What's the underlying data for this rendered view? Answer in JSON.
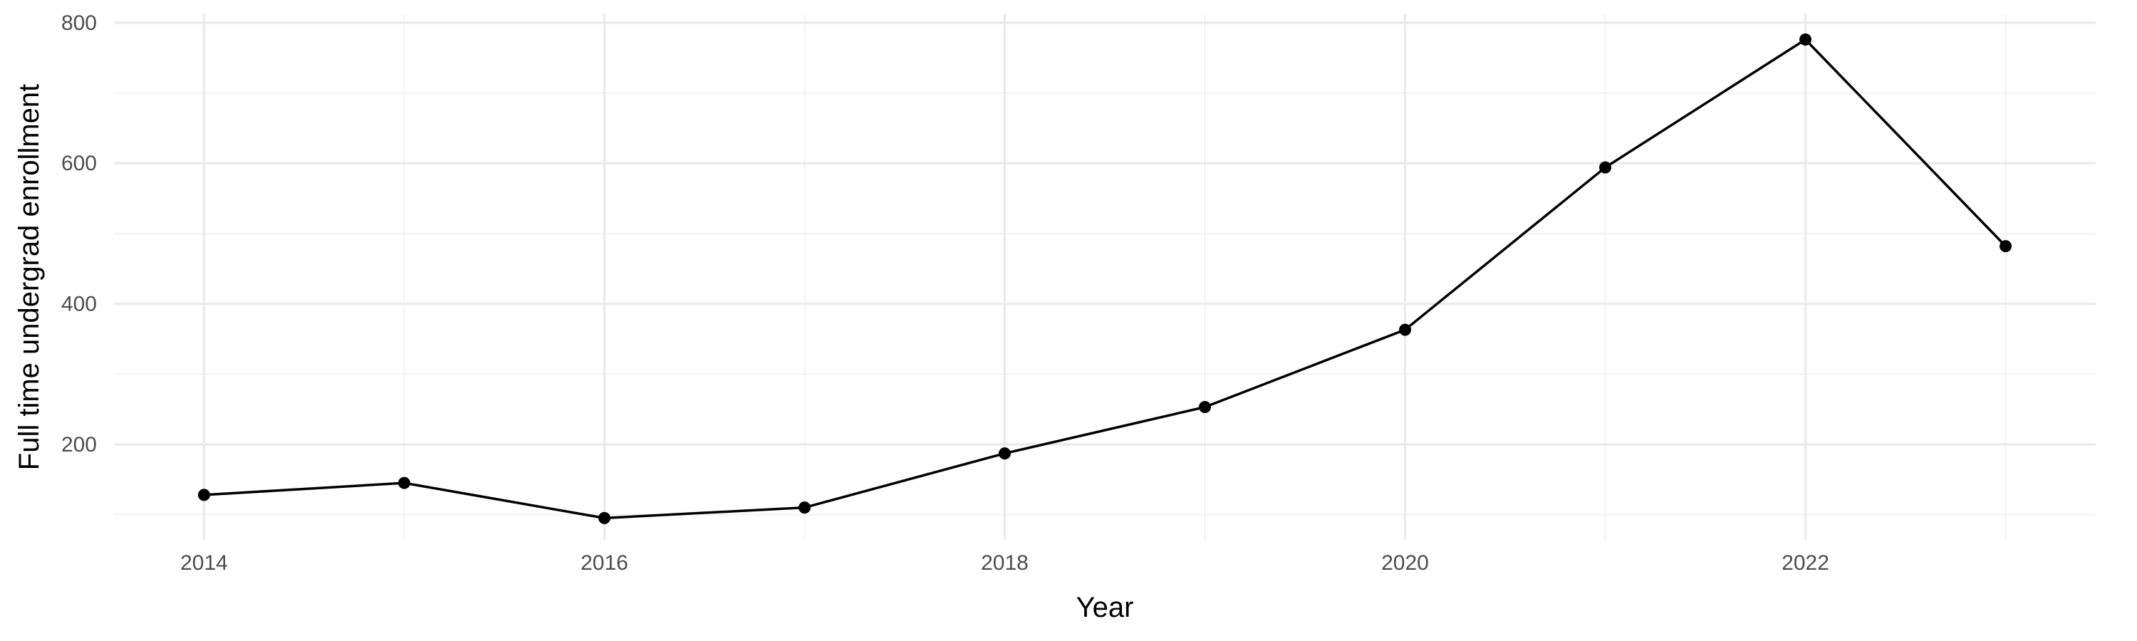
{
  "chart_data": {
    "type": "line",
    "xlabel": "Year",
    "ylabel": "Full time undergrad enrollment",
    "x": [
      2014,
      2015,
      2016,
      2017,
      2018,
      2019,
      2020,
      2021,
      2022,
      2023
    ],
    "series": [
      {
        "values": [
          128,
          145,
          95,
          110,
          187,
          253,
          363,
          594,
          776,
          482
        ]
      }
    ],
    "xlim": [
      2013.55,
      2023.45
    ],
    "ylim": [
      64,
      812
    ],
    "x_ticks": [
      2014,
      2016,
      2018,
      2020,
      2022
    ],
    "x_minor_ticks": [
      2015,
      2017,
      2019,
      2021,
      2023
    ],
    "y_ticks": [
      200,
      400,
      600,
      800
    ],
    "y_minor_ticks": [
      100,
      300,
      500,
      700
    ],
    "x_tick_labels": [
      "2014",
      "2016",
      "2018",
      "2020",
      "2022"
    ],
    "y_tick_labels": [
      "200",
      "400",
      "600",
      "800"
    ],
    "grid": true,
    "legend": "none",
    "colors": {
      "line": "#000000",
      "point": "#000000",
      "grid_major": "#ebebeb",
      "grid_minor": "#f3f3f3"
    }
  }
}
